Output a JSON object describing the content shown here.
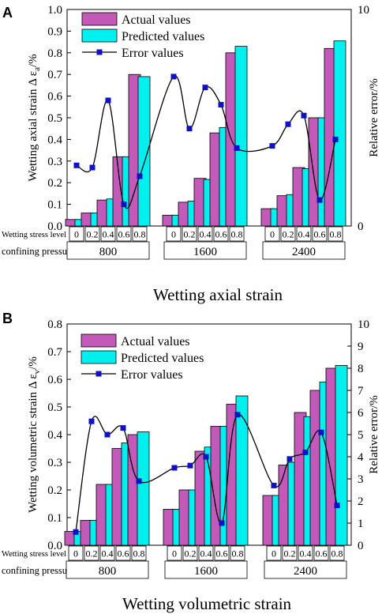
{
  "chart_data": [
    {
      "type": "bar",
      "panel_label": "A",
      "caption": "Wetting axial strain",
      "ylabel": "Wetting axial strain Δ ε",
      "ylabel_sub": "a",
      "ylabel_unit": "/%",
      "y2label": "Relative error/%",
      "ylim": [
        0,
        1.0
      ],
      "yticks": [
        "0.0",
        "0.1",
        "0.2",
        "0.3",
        "0.4",
        "0.5",
        "0.6",
        "0.7",
        "0.8",
        "0.9",
        "1.0"
      ],
      "y2lim": [
        0,
        10
      ],
      "y2ticks": [
        "0",
        "10"
      ],
      "row1_label": "Wetting stress level",
      "row2_label": "confining pressure/kPa",
      "groups": [
        "800",
        "1600",
        "2400"
      ],
      "levels": [
        "0",
        "0.2",
        "0.4",
        "0.6",
        "0.8"
      ],
      "legend": [
        "Actual values",
        "Predicted values",
        "Error values"
      ],
      "series": [
        {
          "name": "Actual values",
          "values": [
            [
              0.03,
              0.06,
              0.12,
              0.32,
              0.7
            ],
            [
              0.05,
              0.11,
              0.22,
              0.43,
              0.8
            ],
            [
              0.08,
              0.14,
              0.27,
              0.5,
              0.82
            ]
          ]
        },
        {
          "name": "Predicted values",
          "values": [
            [
              0.03,
              0.06,
              0.125,
              0.32,
              0.69
            ],
            [
              0.05,
              0.115,
              0.215,
              0.455,
              0.83
            ],
            [
              0.08,
              0.145,
              0.265,
              0.5,
              0.855
            ]
          ]
        },
        {
          "name": "Error values",
          "axis": "right",
          "values": [
            [
              2.8,
              2.7,
              5.8,
              1.0,
              2.3
            ],
            [
              6.9,
              4.5,
              6.4,
              5.6,
              3.6
            ],
            [
              3.7,
              4.7,
              5.1,
              1.2,
              4.0
            ]
          ]
        }
      ]
    },
    {
      "type": "bar",
      "panel_label": "B",
      "caption": "Wetting volumetric strain",
      "ylabel": "Wetting volumetric strain Δ ε",
      "ylabel_sub": "v",
      "ylabel_unit": "/%",
      "y2label": "Relative error/%",
      "ylim": [
        0,
        0.8
      ],
      "yticks": [
        "0.0",
        "0.1",
        "0.2",
        "0.3",
        "0.4",
        "0.5",
        "0.6",
        "0.7",
        "0.8"
      ],
      "y2lim": [
        0,
        10
      ],
      "y2ticks": [
        "0",
        "1",
        "2",
        "3",
        "4",
        "5",
        "6",
        "7",
        "8",
        "9",
        "10"
      ],
      "row1_label": "Wetting stress level",
      "row2_label": "confining pressure/kPa",
      "groups": [
        "800",
        "1600",
        "2400"
      ],
      "levels": [
        "0",
        "0.2",
        "0.4",
        "0.6",
        "0.8"
      ],
      "legend": [
        "Actual values",
        "Predicted values",
        "Error values"
      ],
      "series": [
        {
          "name": "Actual values",
          "values": [
            [
              0.05,
              0.09,
              0.22,
              0.35,
              0.4
            ],
            [
              0.13,
              0.2,
              0.34,
              0.43,
              0.51
            ],
            [
              0.18,
              0.29,
              0.48,
              0.56,
              0.64
            ]
          ]
        },
        {
          "name": "Predicted values",
          "values": [
            [
              0.05,
              0.09,
              0.22,
              0.37,
              0.41
            ],
            [
              0.13,
              0.2,
              0.355,
              0.43,
              0.54
            ],
            [
              0.18,
              0.3,
              0.465,
              0.59,
              0.65
            ]
          ]
        },
        {
          "name": "Error values",
          "axis": "right",
          "values": [
            [
              0.6,
              5.6,
              5.0,
              5.3,
              2.9
            ],
            [
              3.5,
              3.6,
              4.0,
              1.0,
              5.9
            ],
            [
              2.7,
              3.9,
              4.2,
              5.1,
              1.8
            ]
          ]
        }
      ]
    }
  ]
}
